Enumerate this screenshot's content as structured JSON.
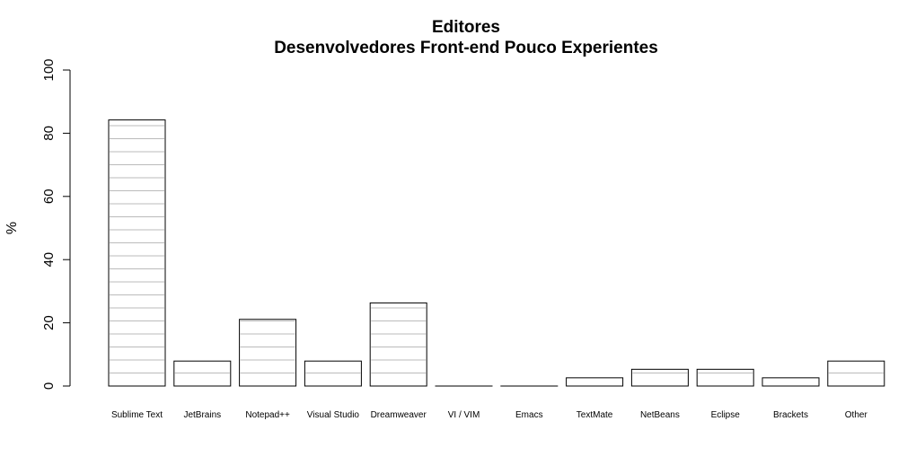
{
  "chart_data": {
    "type": "bar",
    "title": "Editores",
    "subtitle": "Desenvolvedores Front-end Pouco Experientes",
    "xlabel": "",
    "ylabel": "%",
    "ylim": [
      0,
      100
    ],
    "yticks": [
      "0",
      "20",
      "40",
      "60",
      "80",
      "100"
    ],
    "categories": [
      "Sublime Text",
      "JetBrains",
      "Notepad++",
      "Visual Studio",
      "Dreamweaver",
      "VI / VIM",
      "Emacs",
      "TextMate",
      "NetBeans",
      "Eclipse",
      "Brackets",
      "Other"
    ],
    "values": [
      84.2,
      7.9,
      21.1,
      7.9,
      26.3,
      0,
      0,
      2.6,
      5.3,
      5.3,
      2.6,
      7.9
    ],
    "grid": false,
    "bar_fill": "#ffffff",
    "bar_stroke": "#000000",
    "bar_inner_lines": "#bbbbbb"
  }
}
